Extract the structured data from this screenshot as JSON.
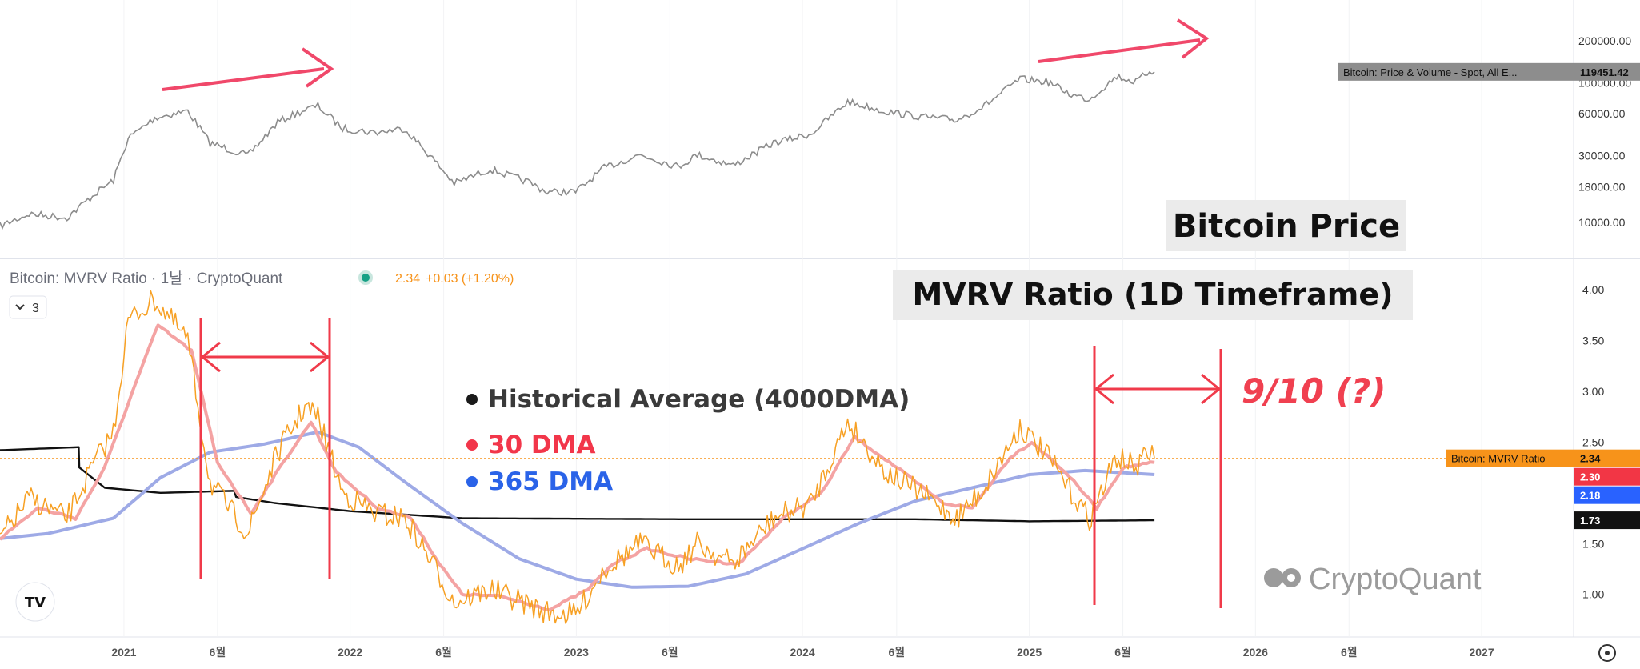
{
  "title_top": "Bitcoin Price",
  "title_bottom": "MVRV Ratio (1D Timeframe)",
  "pane_header": {
    "title": "Bitcoin: MVRV Ratio · 1날 · CryptoQuant",
    "value": "2.34",
    "change": "+0.03 (+1.20%)",
    "collapse_label": "3"
  },
  "legend": [
    {
      "label": "Historical Average (4000DMA)",
      "color": "#1a1a1a"
    },
    {
      "label": "30 DMA",
      "color": "#f2364a"
    },
    {
      "label": "365 DMA",
      "color": "#2a63e8"
    }
  ],
  "annotation": "9/10 (?)",
  "watermark": "CryptoQuant",
  "colors": {
    "price_line": "#8c8c8c",
    "mvrv_line": "#f7a023",
    "dma30": "#f4a3a3",
    "dma365": "#9eaae6",
    "dma4000": "#111111",
    "red_marker": "#f03a4a",
    "tag_orange": "#f7931a",
    "tag_red": "#f23645",
    "tag_blue": "#2962ff",
    "tag_black": "#111111",
    "tag_gray": "#8d8d8d"
  },
  "chart_data": [
    {
      "type": "line",
      "title": "Bitcoin Price",
      "scale": "log",
      "x_ticks": [
        "2021",
        "6월",
        "2022",
        "6월",
        "2023",
        "6월",
        "2024",
        "6월",
        "2025",
        "6월",
        "2026",
        "6월",
        "2027"
      ],
      "y_ticks": [
        "10000.00",
        "18000.00",
        "30000.00",
        "60000.00",
        "100000.00",
        "200000.00"
      ],
      "series": [
        {
          "name": "Bitcoin: Price & Volume - Spot, All E...",
          "last_value": "119451.42",
          "points": [
            [
              "2020-06-15",
              9400
            ],
            [
              "2020-08-01",
              11500
            ],
            [
              "2020-10-01",
              10800
            ],
            [
              "2020-11-15",
              16000
            ],
            [
              "2020-12-15",
              20000
            ],
            [
              "2021-01-08",
              40000
            ],
            [
              "2021-02-20",
              56000
            ],
            [
              "2021-04-14",
              63000
            ],
            [
              "2021-05-20",
              37000
            ],
            [
              "2021-07-20",
              30000
            ],
            [
              "2021-09-06",
              52000
            ],
            [
              "2021-10-20",
              64000
            ],
            [
              "2021-11-10",
              68000
            ],
            [
              "2021-12-20",
              47000
            ],
            [
              "2022-02-10",
              44000
            ],
            [
              "2022-03-30",
              47000
            ],
            [
              "2022-05-10",
              30000
            ],
            [
              "2022-06-18",
              19000
            ],
            [
              "2022-08-15",
              24000
            ],
            [
              "2022-10-15",
              19500
            ],
            [
              "2022-11-15",
              16500
            ],
            [
              "2022-12-31",
              16500
            ],
            [
              "2023-02-15",
              24500
            ],
            [
              "2023-04-14",
              30500
            ],
            [
              "2023-06-15",
              25000
            ],
            [
              "2023-07-15",
              30500
            ],
            [
              "2023-09-11",
              25500
            ],
            [
              "2023-11-15",
              37000
            ],
            [
              "2024-01-15",
              43000
            ],
            [
              "2024-03-14",
              73000
            ],
            [
              "2024-05-15",
              62000
            ],
            [
              "2024-07-10",
              57000
            ],
            [
              "2024-09-06",
              54000
            ],
            [
              "2024-10-20",
              68000
            ],
            [
              "2024-12-17",
              106000
            ],
            [
              "2025-02-01",
              101000
            ],
            [
              "2025-03-10",
              82000
            ],
            [
              "2025-04-08",
              76000
            ],
            [
              "2025-05-22",
              111000
            ],
            [
              "2025-06-22",
              101000
            ],
            [
              "2025-07-14",
              121000
            ],
            [
              "2025-07-22",
              119451
            ]
          ]
        }
      ]
    },
    {
      "type": "line",
      "title": "MVRV Ratio (1D Timeframe)",
      "y_ticks": [
        "1.00",
        "1.50",
        "2.00",
        "2.50",
        "3.00",
        "3.50",
        "4.00"
      ],
      "series": [
        {
          "name": "Bitcoin: MVRV Ratio",
          "last_value": "2.34",
          "points": [
            [
              "2020-06-15",
              1.55
            ],
            [
              "2020-08-01",
              1.95
            ],
            [
              "2020-10-01",
              1.75
            ],
            [
              "2020-11-15",
              2.3
            ],
            [
              "2020-12-15",
              2.6
            ],
            [
              "2021-01-08",
              3.7
            ],
            [
              "2021-02-20",
              3.9
            ],
            [
              "2021-04-14",
              3.5
            ],
            [
              "2021-05-20",
              2.1
            ],
            [
              "2021-07-20",
              1.6
            ],
            [
              "2021-09-06",
              2.4
            ],
            [
              "2021-10-20",
              2.85
            ],
            [
              "2021-11-10",
              2.75
            ],
            [
              "2021-12-20",
              2.0
            ],
            [
              "2022-02-10",
              1.8
            ],
            [
              "2022-03-30",
              1.75
            ],
            [
              "2022-05-10",
              1.35
            ],
            [
              "2022-06-18",
              0.92
            ],
            [
              "2022-08-15",
              1.05
            ],
            [
              "2022-10-15",
              0.9
            ],
            [
              "2022-11-15",
              0.82
            ],
            [
              "2022-12-31",
              0.8
            ],
            [
              "2023-02-15",
              1.25
            ],
            [
              "2023-04-14",
              1.5
            ],
            [
              "2023-06-15",
              1.28
            ],
            [
              "2023-07-15",
              1.5
            ],
            [
              "2023-09-11",
              1.3
            ],
            [
              "2023-11-15",
              1.75
            ],
            [
              "2024-01-15",
              1.9
            ],
            [
              "2024-03-14",
              2.7
            ],
            [
              "2024-05-15",
              2.2
            ],
            [
              "2024-07-10",
              2.0
            ],
            [
              "2024-09-06",
              1.75
            ],
            [
              "2024-10-20",
              2.05
            ],
            [
              "2024-12-17",
              2.65
            ],
            [
              "2025-02-01",
              2.35
            ],
            [
              "2025-03-10",
              2.0
            ],
            [
              "2025-04-08",
              1.75
            ],
            [
              "2025-05-22",
              2.35
            ],
            [
              "2025-06-22",
              2.25
            ],
            [
              "2025-07-14",
              2.4
            ],
            [
              "2025-07-22",
              2.34
            ]
          ]
        },
        {
          "name": "30 DMA",
          "last_value": "2.30",
          "points": [
            [
              "2020-06-15",
              1.55
            ],
            [
              "2020-08-15",
              1.85
            ],
            [
              "2020-10-15",
              1.75
            ],
            [
              "2020-12-01",
              2.25
            ],
            [
              "2021-01-15",
              3.0
            ],
            [
              "2021-02-25",
              3.65
            ],
            [
              "2021-04-20",
              3.4
            ],
            [
              "2021-06-01",
              2.3
            ],
            [
              "2021-07-25",
              1.8
            ],
            [
              "2021-09-15",
              2.3
            ],
            [
              "2021-10-30",
              2.7
            ],
            [
              "2021-12-10",
              2.2
            ],
            [
              "2022-02-15",
              1.85
            ],
            [
              "2022-04-10",
              1.75
            ],
            [
              "2022-05-25",
              1.3
            ],
            [
              "2022-07-01",
              1.0
            ],
            [
              "2022-09-01",
              0.98
            ],
            [
              "2022-11-20",
              0.85
            ],
            [
              "2023-01-20",
              1.05
            ],
            [
              "2023-03-01",
              1.3
            ],
            [
              "2023-04-25",
              1.45
            ],
            [
              "2023-07-01",
              1.35
            ],
            [
              "2023-09-20",
              1.3
            ],
            [
              "2023-12-01",
              1.75
            ],
            [
              "2024-02-01",
              2.0
            ],
            [
              "2024-03-25",
              2.55
            ],
            [
              "2024-06-01",
              2.25
            ],
            [
              "2024-08-15",
              1.9
            ],
            [
              "2024-10-01",
              1.85
            ],
            [
              "2024-12-01",
              2.35
            ],
            [
              "2025-01-05",
              2.5
            ],
            [
              "2025-03-01",
              2.2
            ],
            [
              "2025-04-20",
              1.85
            ],
            [
              "2025-06-01",
              2.25
            ],
            [
              "2025-07-22",
              2.3
            ]
          ]
        },
        {
          "name": "365 DMA",
          "last_value": "2.18",
          "points": [
            [
              "2020-06-15",
              1.55
            ],
            [
              "2020-09-01",
              1.6
            ],
            [
              "2020-12-15",
              1.75
            ],
            [
              "2021-03-01",
              2.15
            ],
            [
              "2021-05-20",
              2.4
            ],
            [
              "2021-08-15",
              2.48
            ],
            [
              "2021-11-10",
              2.6
            ],
            [
              "2022-01-15",
              2.45
            ],
            [
              "2022-04-01",
              2.1
            ],
            [
              "2022-07-01",
              1.7
            ],
            [
              "2022-10-01",
              1.35
            ],
            [
              "2023-01-01",
              1.15
            ],
            [
              "2023-04-01",
              1.07
            ],
            [
              "2023-07-01",
              1.08
            ],
            [
              "2023-10-01",
              1.2
            ],
            [
              "2024-01-01",
              1.45
            ],
            [
              "2024-04-01",
              1.7
            ],
            [
              "2024-07-01",
              1.92
            ],
            [
              "2024-10-01",
              2.05
            ],
            [
              "2025-01-01",
              2.18
            ],
            [
              "2025-04-01",
              2.22
            ],
            [
              "2025-07-22",
              2.18
            ]
          ]
        },
        {
          "name": "Historical Average (4000DMA)",
          "last_value": "1.73",
          "points": [
            [
              "2020-06-15",
              2.42
            ],
            [
              "2020-10-20",
              2.45
            ],
            [
              "2020-10-21",
              2.25
            ],
            [
              "2020-12-01",
              2.05
            ],
            [
              "2021-03-01",
              2.0
            ],
            [
              "2021-06-28",
              2.02
            ],
            [
              "2021-07-01",
              1.96
            ],
            [
              "2021-09-01",
              1.9
            ],
            [
              "2022-01-01",
              1.82
            ],
            [
              "2022-07-01",
              1.75
            ],
            [
              "2023-07-01",
              1.74
            ],
            [
              "2024-07-01",
              1.74
            ],
            [
              "2025-01-01",
              1.72
            ],
            [
              "2025-07-22",
              1.73
            ]
          ]
        }
      ]
    }
  ]
}
